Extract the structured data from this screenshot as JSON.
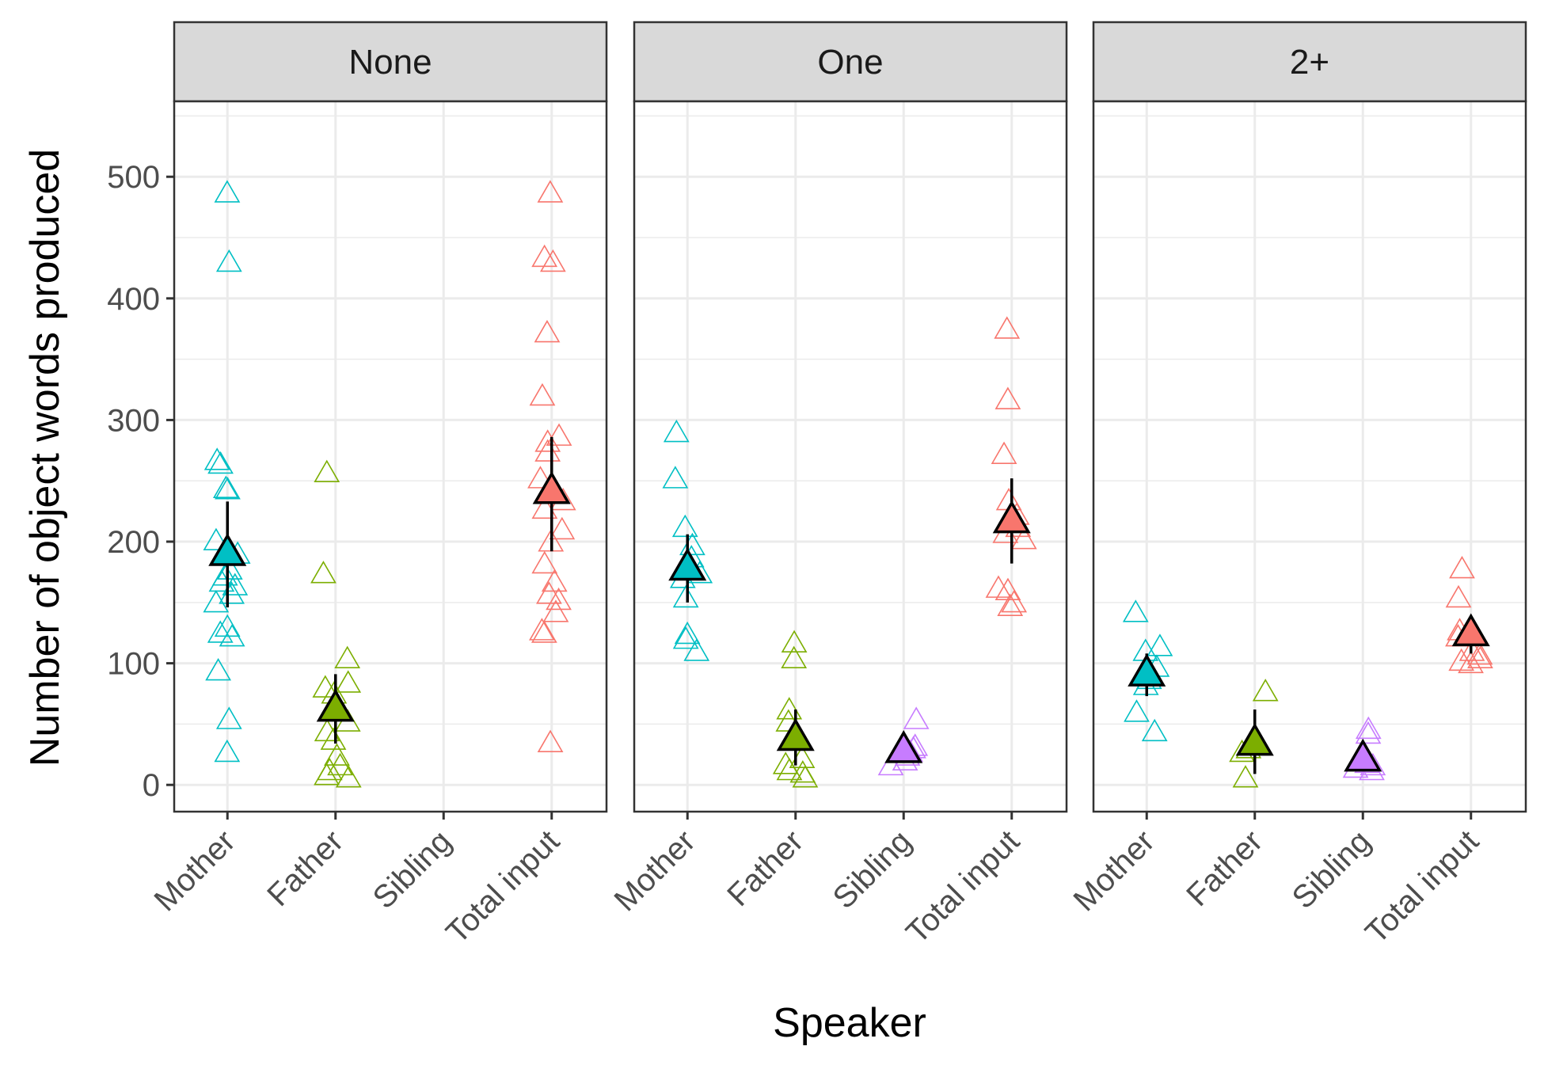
{
  "chart_data": {
    "type": "scatter",
    "xlabel": "Speaker",
    "ylabel": "Number of object words produced",
    "categories": [
      "Mother",
      "Father",
      "Sibling",
      "Total input"
    ],
    "ylim": [
      -22,
      562
    ],
    "yticks": [
      0,
      100,
      200,
      300,
      400,
      500
    ],
    "grid": true,
    "legend": "none",
    "colors": {
      "Mother": "#00BFC4",
      "Father": "#7CAE00",
      "Sibling": "#C77CFF",
      "Total input": "#F8766D",
      "summary_outline": "#000000",
      "strip_fill": "#d9d9d9",
      "grid_major": "#ebebeb",
      "panel_border": "#333333"
    },
    "panels": [
      {
        "strip_label": "None",
        "points": {
          "Mother": [
            485,
            428,
            265,
            262,
            242,
            241,
            199,
            188,
            175,
            170,
            165,
            162,
            155,
            148,
            128,
            123,
            120,
            92,
            52,
            25
          ],
          "Father": [
            255,
            172,
            102,
            82,
            78,
            73,
            50,
            42,
            35,
            22,
            14,
            10,
            6,
            4
          ],
          "Sibling": [],
          "Total input": [
            485,
            432,
            428,
            370,
            318,
            285,
            280,
            272,
            250,
            232,
            225,
            208,
            198,
            180,
            165,
            155,
            150,
            140,
            125,
            123,
            33
          ]
        },
        "summary": {
          "Mother": {
            "mean": 189,
            "lower": 146,
            "upper": 233
          },
          "Father": {
            "mean": 61,
            "lower": 34,
            "upper": 91
          },
          "Total input": {
            "mean": 240,
            "lower": 192,
            "upper": 286
          }
        }
      },
      {
        "strip_label": "One",
        "points": {
          "Mother": [
            288,
            250,
            210,
            195,
            185,
            172,
            168,
            152,
            122,
            118,
            108
          ],
          "Father": [
            115,
            102,
            60,
            50,
            20,
            15,
            10,
            8,
            4
          ],
          "Sibling": [
            52,
            30,
            28,
            25,
            22,
            18,
            14
          ],
          "Total input": [
            373,
            315,
            270,
            232,
            220,
            210,
            205,
            200,
            160,
            158,
            148,
            145
          ]
        },
        "summary": {
          "Mother": {
            "mean": 177,
            "lower": 150,
            "upper": 206
          },
          "Father": {
            "mean": 37,
            "lower": 16,
            "upper": 62
          },
          "Sibling": {
            "mean": 27,
            "lower": 21,
            "upper": 33
          },
          "Total input": {
            "mean": 216,
            "lower": 182,
            "upper": 252
          }
        }
      },
      {
        "strip_label": "2+",
        "points": {
          "Mother": [
            140,
            112,
            108,
            95,
            85,
            80,
            58,
            42
          ],
          "Father": [
            75,
            28,
            25,
            4
          ],
          "Sibling": [
            44,
            40,
            16,
            14,
            12,
            10
          ],
          "Total input": [
            176,
            152,
            125,
            120,
            108,
            105,
            102,
            100,
            98
          ]
        },
        "summary": {
          "Mother": {
            "mean": 90,
            "lower": 73,
            "upper": 108
          },
          "Father": {
            "mean": 33,
            "lower": 9,
            "upper": 62
          },
          "Sibling": {
            "mean": 20,
            "lower": 12,
            "upper": 27
          },
          "Total input": {
            "mean": 123,
            "lower": 108,
            "upper": 139
          }
        }
      }
    ]
  }
}
